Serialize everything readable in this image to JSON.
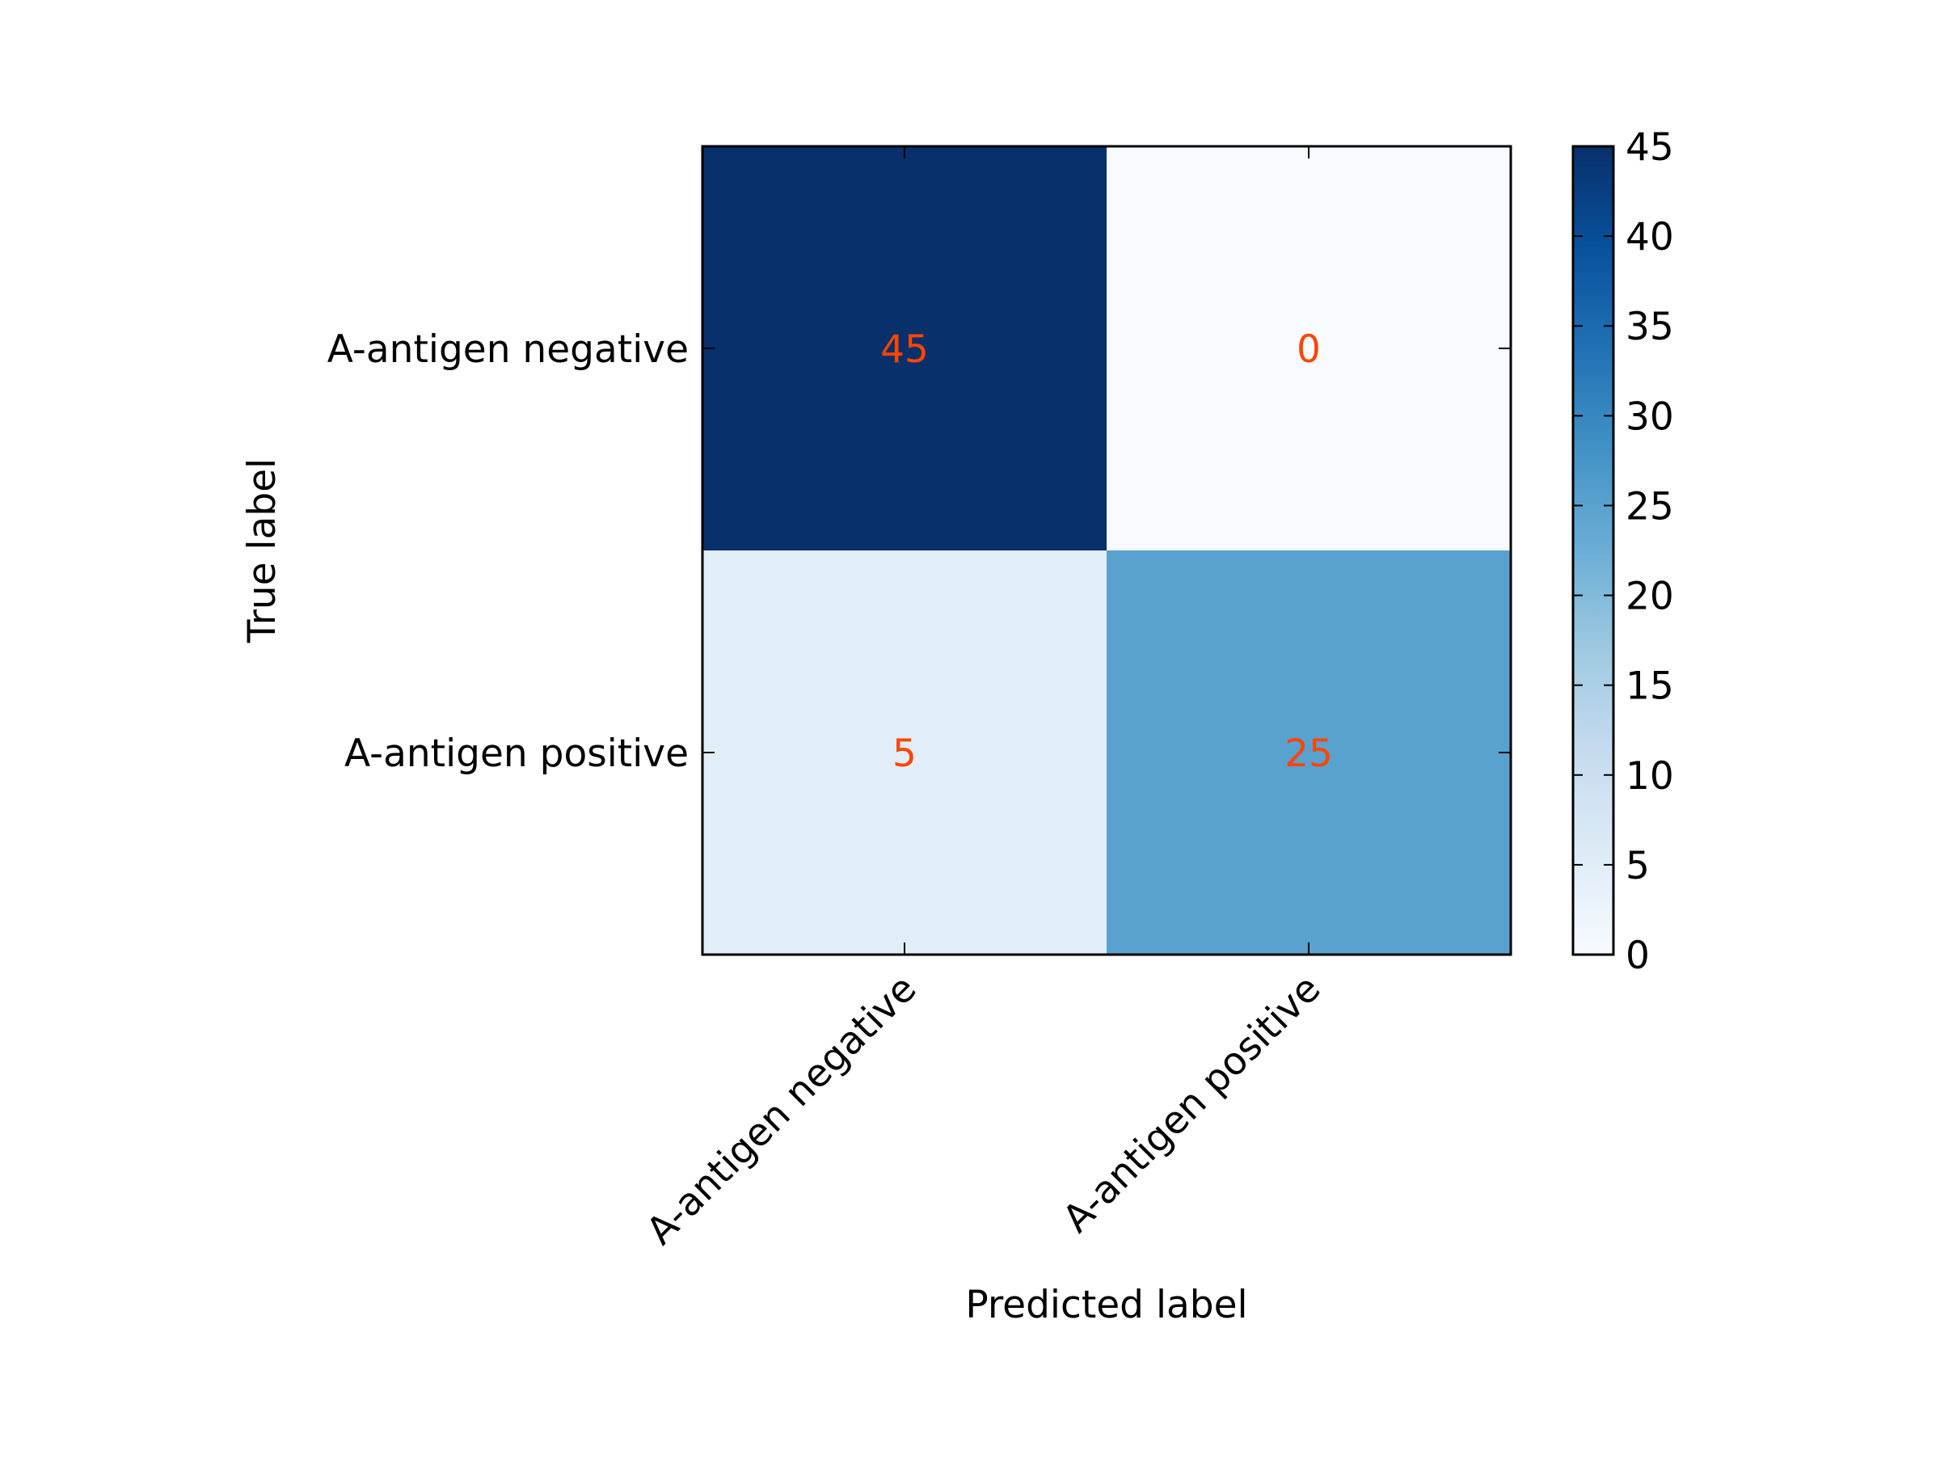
{
  "chart_data": {
    "type": "heatmap",
    "title": "",
    "xlabel": "Predicted label",
    "ylabel": "True label",
    "x_categories": [
      "A-antigen negative",
      "A-antigen positive"
    ],
    "y_categories": [
      "A-antigen negative",
      "A-antigen positive"
    ],
    "values": [
      [
        45,
        0
      ],
      [
        5,
        25
      ]
    ],
    "colormap": "Blues",
    "vmin": 0,
    "vmax": 45,
    "colorbar_ticks": [
      0,
      5,
      10,
      15,
      20,
      25,
      30,
      35,
      40,
      45
    ],
    "annotation_color": "#ff4500",
    "grid": false
  }
}
